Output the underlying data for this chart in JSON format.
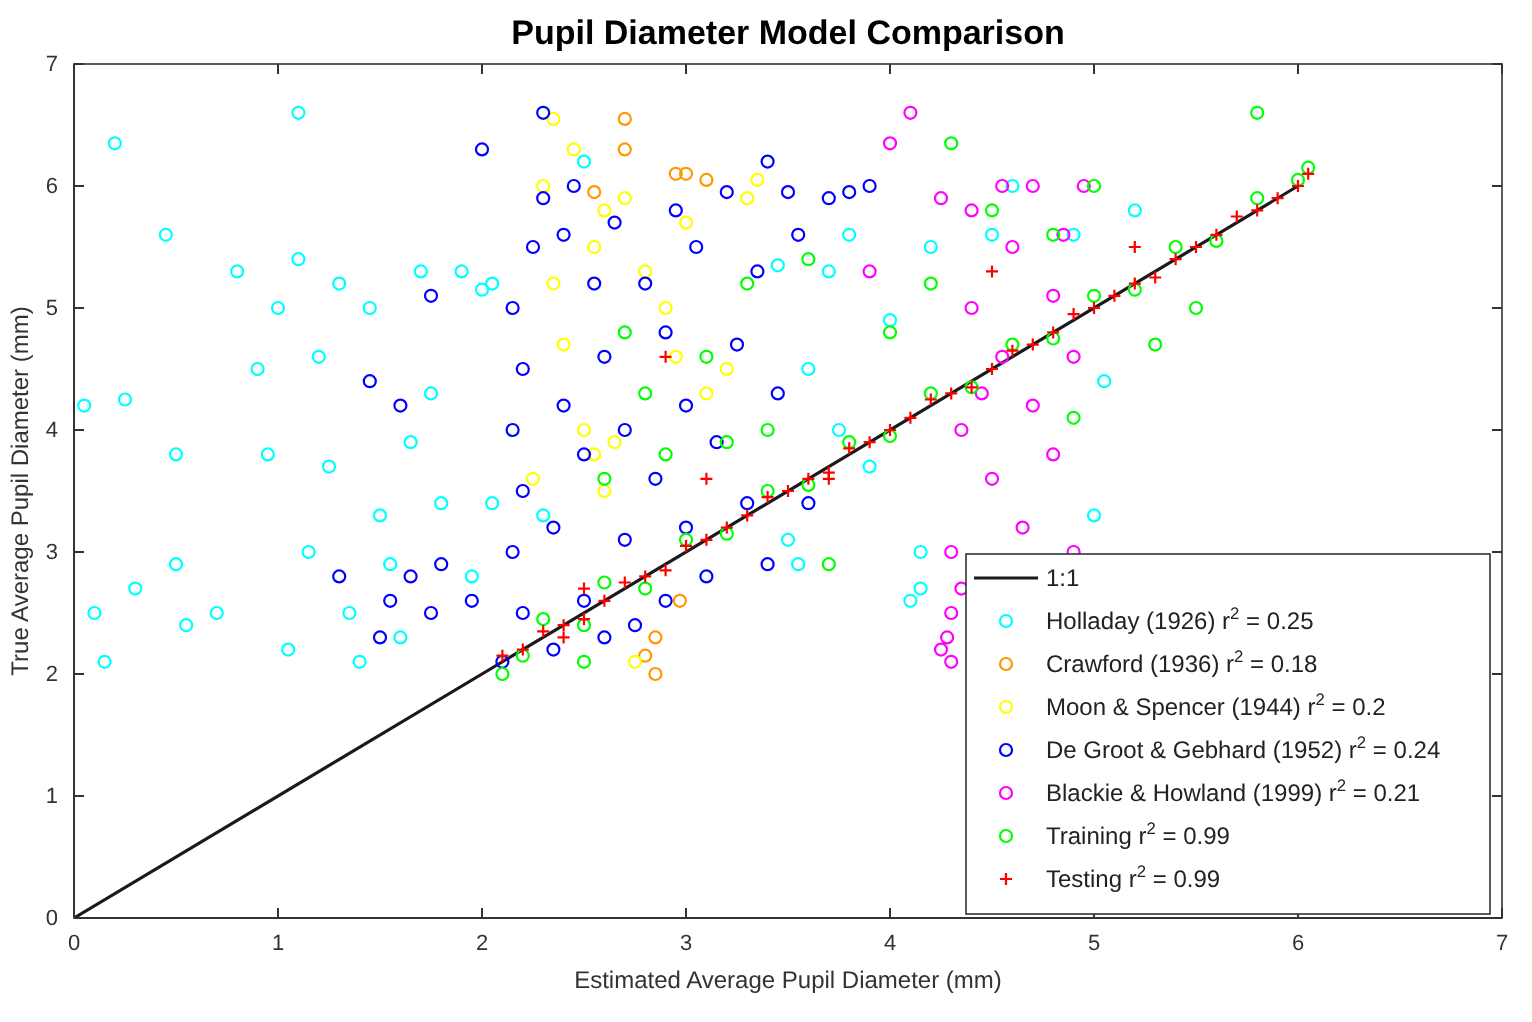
{
  "chart_data": {
    "type": "scatter",
    "title": "Pupil Diameter Model Comparison",
    "xlabel": "Estimated Average Pupil Diameter (mm)",
    "ylabel": "True Average Pupil Diameter (mm)",
    "xlim": [
      0,
      7
    ],
    "ylim": [
      0,
      7
    ],
    "xticks": [
      0,
      1,
      2,
      3,
      4,
      5,
      6,
      7
    ],
    "yticks": [
      0,
      1,
      2,
      3,
      4,
      5,
      6,
      7
    ],
    "grid": false,
    "legend": "bottom right",
    "series": [
      {
        "name": "1:1",
        "type": "line",
        "color": "#1a1a1a",
        "marker": "none",
        "line_style": "solid",
        "x": [
          0,
          6
        ],
        "values": [
          0,
          6
        ]
      },
      {
        "name": "Holladay (1926) r$^{2}$ = 0.25",
        "color": "#00ffff",
        "marker": "circle",
        "x": [
          0.2,
          0.45,
          0.05,
          0.1,
          0.15,
          0.3,
          0.5,
          0.7,
          0.8,
          0.9,
          1.0,
          1.05,
          1.1,
          1.15,
          1.2,
          1.3,
          1.35,
          1.45,
          1.5,
          1.6,
          1.7,
          1.75,
          1.8,
          1.9,
          1.95,
          2.0,
          2.05,
          1.1,
          0.5,
          0.25,
          0.55,
          0.95,
          1.25,
          1.4,
          1.55,
          1.65,
          2.05,
          2.3,
          2.5,
          3.5,
          3.6,
          3.7,
          3.8,
          3.9,
          4.0,
          4.1,
          4.2,
          4.15,
          4.5,
          4.6,
          4.9,
          5.0,
          5.05,
          5.2,
          3.45,
          3.55,
          4.15,
          3.75
        ],
        "values": [
          6.35,
          5.6,
          4.2,
          2.5,
          2.1,
          2.7,
          2.9,
          2.5,
          5.3,
          4.5,
          5.0,
          2.2,
          5.4,
          3.0,
          4.6,
          5.2,
          2.5,
          5.0,
          3.3,
          2.3,
          5.3,
          4.3,
          3.4,
          5.3,
          2.8,
          5.15,
          3.4,
          6.6,
          3.8,
          4.25,
          2.4,
          3.8,
          3.7,
          2.1,
          2.9,
          3.9,
          5.2,
          3.3,
          6.2,
          3.1,
          4.5,
          5.3,
          5.6,
          3.7,
          4.9,
          2.6,
          5.5,
          3.0,
          5.6,
          6.0,
          5.6,
          3.3,
          4.4,
          5.8,
          5.35,
          2.9,
          2.7,
          4.0
        ]
      },
      {
        "name": "Crawford (1936) r$^{2}$ = 0.18",
        "color": "#ff9900",
        "marker": "circle",
        "x": [
          2.85,
          2.85,
          2.97,
          2.7,
          2.7,
          2.95,
          3.1,
          3.0,
          2.55,
          2.8
        ],
        "values": [
          2.0,
          2.3,
          2.6,
          6.55,
          6.3,
          6.1,
          6.05,
          6.1,
          5.95,
          2.15
        ]
      },
      {
        "name": "Moon & Spencer (1944) r$^{2}$ = 0.2",
        "color": "#ffff00",
        "marker": "circle",
        "x": [
          2.3,
          2.35,
          2.55,
          2.6,
          2.7,
          2.4,
          2.5,
          2.55,
          2.6,
          2.8,
          2.9,
          3.0,
          3.1,
          3.2,
          3.3,
          2.45,
          2.35,
          2.65,
          2.95,
          3.35,
          2.75,
          2.25
        ],
        "values": [
          6.0,
          6.55,
          5.5,
          5.8,
          5.9,
          4.7,
          4.0,
          3.8,
          3.5,
          5.3,
          5.0,
          5.7,
          4.3,
          4.5,
          5.9,
          6.3,
          5.2,
          3.9,
          4.6,
          6.05,
          2.1,
          3.6
        ]
      },
      {
        "name": "De Groot & Gebhard (1952) r$^{2}$ = 0.24",
        "color": "#0000ff",
        "marker": "circle",
        "x": [
          1.45,
          1.6,
          1.55,
          1.5,
          1.65,
          1.75,
          1.8,
          1.3,
          1.95,
          2.0,
          2.1,
          2.15,
          2.15,
          2.15,
          2.2,
          2.2,
          2.2,
          2.25,
          2.3,
          2.35,
          2.35,
          2.4,
          2.4,
          2.5,
          2.5,
          2.55,
          2.6,
          2.6,
          2.65,
          2.7,
          2.7,
          2.75,
          2.8,
          2.85,
          2.9,
          2.9,
          2.95,
          3.0,
          3.0,
          3.05,
          3.1,
          3.15,
          3.2,
          3.25,
          3.3,
          3.35,
          3.4,
          3.45,
          3.5,
          3.55,
          3.6,
          3.7,
          3.8,
          3.9,
          2.3,
          1.75,
          2.45,
          3.4
        ],
        "values": [
          4.4,
          4.2,
          2.6,
          2.3,
          2.8,
          2.5,
          2.9,
          2.8,
          2.6,
          6.3,
          2.1,
          3.0,
          4.0,
          5.0,
          2.5,
          3.5,
          4.5,
          5.5,
          6.6,
          2.2,
          3.2,
          4.2,
          5.6,
          2.6,
          3.8,
          5.2,
          2.3,
          4.6,
          5.7,
          3.1,
          4.0,
          2.4,
          5.2,
          3.6,
          4.8,
          2.6,
          5.8,
          3.2,
          4.2,
          5.5,
          2.8,
          3.9,
          5.95,
          4.7,
          3.4,
          5.3,
          2.9,
          4.3,
          5.95,
          5.6,
          3.4,
          5.9,
          5.95,
          6.0,
          5.9,
          5.1,
          6.0,
          6.2
        ]
      },
      {
        "name": "Blackie & Howland (1999) r$^{2}$ = 0.21",
        "color": "#ff00ff",
        "marker": "circle",
        "x": [
          4.3,
          4.3,
          4.35,
          4.4,
          4.4,
          4.3,
          4.5,
          4.55,
          4.55,
          4.25,
          4.6,
          4.65,
          4.7,
          4.7,
          4.35,
          4.8,
          4.8,
          4.28,
          4.9,
          4.9,
          4.95,
          4.0,
          4.1,
          3.9,
          4.25,
          4.45,
          4.85
        ],
        "values": [
          2.1,
          3.0,
          4.0,
          5.0,
          5.8,
          2.5,
          3.6,
          4.6,
          6.0,
          2.2,
          5.5,
          3.2,
          4.2,
          6.0,
          2.7,
          5.1,
          3.8,
          2.3,
          3.0,
          4.6,
          6.0,
          6.35,
          6.6,
          5.3,
          5.9,
          4.3,
          5.6
        ]
      },
      {
        "name": "Training r$^{2}$ = 0.99",
        "color": "#00ff00",
        "marker": "circle",
        "x": [
          2.1,
          2.2,
          2.3,
          2.5,
          2.6,
          2.8,
          3.0,
          3.2,
          3.4,
          3.6,
          3.8,
          4.0,
          4.2,
          4.4,
          4.6,
          4.8,
          5.0,
          5.2,
          5.4,
          5.6,
          5.8,
          6.0,
          6.05,
          2.6,
          2.8,
          2.9,
          3.1,
          3.3,
          3.4,
          2.5,
          3.7,
          4.2,
          4.0,
          4.5,
          4.8,
          5.0,
          5.3,
          4.9,
          5.8,
          4.3,
          3.6,
          2.7,
          3.2,
          5.5
        ],
        "values": [
          2.0,
          2.15,
          2.45,
          2.4,
          2.75,
          2.7,
          3.1,
          3.15,
          3.5,
          3.55,
          3.9,
          3.95,
          4.3,
          4.35,
          4.7,
          4.75,
          5.1,
          5.15,
          5.5,
          5.55,
          5.9,
          6.05,
          6.15,
          3.6,
          4.3,
          3.8,
          4.6,
          5.2,
          4.0,
          2.1,
          2.9,
          5.2,
          4.8,
          5.8,
          5.6,
          6.0,
          4.7,
          4.1,
          6.6,
          6.35,
          5.4,
          4.8,
          3.9,
          5.0
        ]
      },
      {
        "name": "Testing r$^{2}$ = 0.99",
        "color": "#ff0000",
        "marker": "cross",
        "x": [
          2.1,
          2.2,
          2.3,
          2.4,
          2.5,
          2.6,
          2.7,
          2.8,
          2.9,
          3.0,
          3.1,
          3.2,
          3.3,
          3.4,
          3.5,
          3.6,
          3.7,
          3.8,
          3.9,
          4.0,
          4.1,
          4.2,
          4.3,
          4.4,
          4.5,
          4.6,
          4.7,
          4.8,
          4.9,
          5.0,
          5.1,
          5.2,
          5.3,
          5.4,
          5.5,
          5.6,
          5.7,
          5.8,
          5.9,
          6.0,
          6.05,
          2.9,
          3.7,
          2.5,
          4.5,
          5.2,
          3.1,
          2.4
        ],
        "values": [
          2.15,
          2.2,
          2.35,
          2.4,
          2.45,
          2.6,
          2.75,
          2.8,
          2.85,
          3.05,
          3.1,
          3.2,
          3.3,
          3.45,
          3.5,
          3.6,
          3.65,
          3.85,
          3.9,
          4.0,
          4.1,
          4.25,
          4.3,
          4.35,
          4.5,
          4.65,
          4.7,
          4.8,
          4.95,
          5.0,
          5.1,
          5.2,
          5.25,
          5.4,
          5.5,
          5.6,
          5.75,
          5.8,
          5.9,
          6.0,
          6.1,
          4.6,
          3.6,
          2.7,
          5.3,
          5.5,
          3.6,
          2.3
        ]
      }
    ]
  }
}
